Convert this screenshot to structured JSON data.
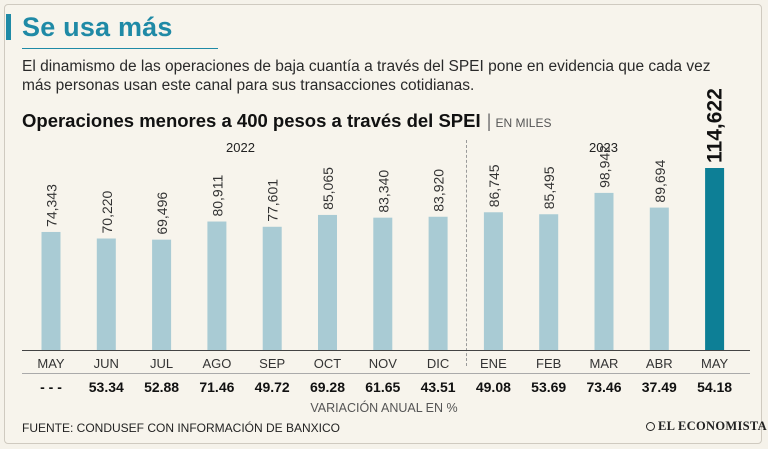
{
  "header": {
    "title": "Se usa más",
    "intro": "El dinamismo de las operaciones de baja cuantía a través del SPEI pone en evidencia que cada vez más personas usan este canal para sus transacciones cotidianas."
  },
  "chart_data": {
    "type": "bar",
    "title": "Operaciones menores a 400 pesos a través del SPEI",
    "unit": "EN MILES",
    "years": [
      "2022",
      "2023"
    ],
    "categories": [
      "MAY",
      "JUN",
      "JUL",
      "AGO",
      "SEP",
      "OCT",
      "NOV",
      "DIC",
      "ENE",
      "FEB",
      "MAR",
      "ABR",
      "MAY"
    ],
    "values": [
      74343,
      70220,
      69496,
      80911,
      77601,
      85065,
      83340,
      83920,
      86745,
      85495,
      98942,
      89694,
      114622
    ],
    "value_labels": [
      "74,343",
      "70,220",
      "69,496",
      "80,911",
      "77,601",
      "85,065",
      "83,340",
      "83,920",
      "86,745",
      "85,495",
      "98,942",
      "89,694",
      "114,622"
    ],
    "highlight_index": 12,
    "annual_variation": [
      "- - -",
      "53.34",
      "52.88",
      "71.46",
      "49.72",
      "69.28",
      "61.65",
      "43.51",
      "49.08",
      "53.69",
      "73.46",
      "37.49",
      "54.18"
    ],
    "annual_variation_label": "VARIACIÓN ANUAL EN %",
    "ylim": [
      0,
      125000
    ],
    "grid": false,
    "colors": {
      "bar": "#a9cbd4",
      "highlight": "#0d7f96"
    }
  },
  "footer": {
    "source": "FUENTE: CONDUSEF CON INFORMACIÓN DE BANXICO",
    "brand": "EL ECONOMISTA"
  }
}
